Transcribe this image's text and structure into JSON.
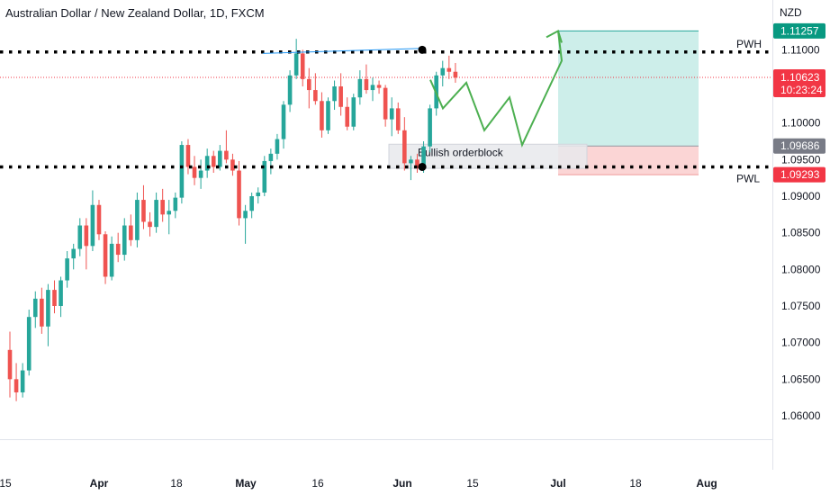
{
  "header": {
    "title": "Australian Dollar / New Zealand Dollar, 1D, FXCM",
    "currency": "NZD"
  },
  "chart_data": {
    "type": "candlestick",
    "ylim": [
      1.0565,
      1.1185
    ],
    "y_ticks": [
      "1.11000",
      "1.10000",
      "1.09500",
      "1.09000",
      "1.08500",
      "1.08000",
      "1.07500",
      "1.07000",
      "1.06500",
      "1.06000"
    ],
    "x_ticks": [
      {
        "label": "15",
        "bold": false
      },
      {
        "label": "Apr",
        "bold": true
      },
      {
        "label": "18",
        "bold": false
      },
      {
        "label": "May",
        "bold": true
      },
      {
        "label": "16",
        "bold": false
      },
      {
        "label": "Jun",
        "bold": true
      },
      {
        "label": "15",
        "bold": false
      },
      {
        "label": "Jul",
        "bold": true
      },
      {
        "label": "18",
        "bold": false
      },
      {
        "label": "Aug",
        "bold": true
      }
    ],
    "candles": [
      [
        1.069,
        1.0715,
        1.0625,
        1.065
      ],
      [
        1.065,
        1.0672,
        1.062,
        1.0632
      ],
      [
        1.0632,
        1.0672,
        1.0625,
        1.0662
      ],
      [
        1.0662,
        1.0745,
        1.0655,
        1.0735
      ],
      [
        1.0735,
        1.077,
        1.072,
        1.076
      ],
      [
        1.076,
        1.0775,
        1.0712,
        1.0722
      ],
      [
        1.0722,
        1.078,
        1.0695,
        1.0772
      ],
      [
        1.0772,
        1.0785,
        1.074,
        1.075
      ],
      [
        1.075,
        1.079,
        1.0735,
        1.0785
      ],
      [
        1.0785,
        1.0825,
        1.0775,
        1.0815
      ],
      [
        1.0815,
        1.0835,
        1.08,
        1.0828
      ],
      [
        1.0828,
        1.087,
        1.0818,
        1.086
      ],
      [
        1.086,
        1.087,
        1.08,
        1.0832
      ],
      [
        1.0832,
        1.0908,
        1.0825,
        1.0888
      ],
      [
        1.0888,
        1.0895,
        1.084,
        1.0848
      ],
      [
        1.0848,
        1.0852,
        1.078,
        1.079
      ],
      [
        1.079,
        1.0845,
        1.0785,
        1.0835
      ],
      [
        1.0835,
        1.085,
        1.081,
        1.082
      ],
      [
        1.082,
        1.087,
        1.0812,
        1.086
      ],
      [
        1.086,
        1.0875,
        1.0832,
        1.084
      ],
      [
        1.084,
        1.0905,
        1.083,
        1.0895
      ],
      [
        1.0895,
        1.0915,
        1.0855,
        1.0865
      ],
      [
        1.0865,
        1.0878,
        1.0845,
        1.0858
      ],
      [
        1.0858,
        1.0905,
        1.085,
        1.0895
      ],
      [
        1.0895,
        1.091,
        1.0865,
        1.0875
      ],
      [
        1.0875,
        1.0895,
        1.0848,
        1.088
      ],
      [
        1.088,
        1.0905,
        1.087,
        1.0898
      ],
      [
        1.0898,
        1.0975,
        1.089,
        1.097
      ],
      [
        1.097,
        1.0978,
        1.093,
        1.094
      ],
      [
        1.094,
        1.0955,
        1.0915,
        1.0925
      ],
      [
        1.0925,
        1.095,
        1.091,
        1.0935
      ],
      [
        1.0935,
        1.0965,
        1.0925,
        1.0955
      ],
      [
        1.0955,
        1.0962,
        1.0932,
        1.094
      ],
      [
        1.094,
        1.097,
        1.0935,
        1.0962
      ],
      [
        1.0962,
        1.099,
        1.0945,
        1.095
      ],
      [
        1.095,
        1.0958,
        1.0928,
        1.0935
      ],
      [
        1.0935,
        1.0948,
        1.086,
        1.087
      ],
      [
        1.087,
        1.0888,
        1.0835,
        1.088
      ],
      [
        1.088,
        1.0905,
        1.087,
        1.09
      ],
      [
        1.09,
        1.0912,
        1.089,
        1.0905
      ],
      [
        1.0905,
        1.0955,
        1.09,
        1.0948
      ],
      [
        1.0948,
        1.0965,
        1.093,
        1.0958
      ],
      [
        1.0958,
        1.0985,
        1.095,
        1.0978
      ],
      [
        1.0978,
        1.103,
        1.0965,
        1.1025
      ],
      [
        1.1025,
        1.1072,
        1.1015,
        1.1065
      ],
      [
        1.1065,
        1.1115,
        1.106,
        1.1095
      ],
      [
        1.1095,
        1.11,
        1.105,
        1.106
      ],
      [
        1.106,
        1.1075,
        1.102,
        1.1045
      ],
      [
        1.1045,
        1.1068,
        1.1025,
        1.103
      ],
      [
        1.103,
        1.1042,
        1.098,
        1.099
      ],
      [
        1.099,
        1.1035,
        1.0985,
        1.103
      ],
      [
        1.103,
        1.1058,
        1.1018,
        1.105
      ],
      [
        1.105,
        1.1068,
        1.101,
        1.1022
      ],
      [
        1.1022,
        1.1035,
        1.099,
        1.0995
      ],
      [
        1.0995,
        1.104,
        1.099,
        1.1035
      ],
      [
        1.1035,
        1.1072,
        1.1025,
        1.106
      ],
      [
        1.106,
        1.108,
        1.104,
        1.1045
      ],
      [
        1.1045,
        1.1062,
        1.103,
        1.1052
      ],
      [
        1.1052,
        1.1058,
        1.104,
        1.1048
      ],
      [
        1.1048,
        1.1052,
        1.0995,
        1.1005
      ],
      [
        1.1005,
        1.1035,
        1.0982,
        1.102
      ],
      [
        1.102,
        1.1028,
        1.0985,
        1.099
      ],
      [
        1.099,
        1.1008,
        1.0935,
        1.0945
      ],
      [
        1.0945,
        1.0955,
        1.0922,
        1.095
      ],
      [
        1.095,
        1.0958,
        1.0932,
        1.0938
      ],
      [
        1.0938,
        1.0975,
        1.0932,
        1.0968
      ],
      [
        1.0968,
        1.1025,
        1.096,
        1.102
      ],
      [
        1.102,
        1.107,
        1.101,
        1.1065
      ],
      [
        1.1065,
        1.1085,
        1.105,
        1.1075
      ],
      [
        1.1075,
        1.1092,
        1.106,
        1.107
      ],
      [
        1.107,
        1.1082,
        1.1055,
        1.1062
      ]
    ],
    "current_price": "1.10623",
    "countdown": "10:23:24",
    "range_high_tag": "1.11257",
    "ob_top_tag": "1.09686",
    "range_low_tag": "1.09293",
    "levels": {
      "pwh": {
        "label": "PWH",
        "value": 1.1097
      },
      "pwl": {
        "label": "PWL",
        "value": 1.094
      }
    },
    "orderblock": {
      "label": "Bullish orderblock",
      "top": 1.0971,
      "bottom": 1.0938
    },
    "projection": {
      "target": 1.11257,
      "entry": 1.09686,
      "stop": 1.09293,
      "path": [
        [
          0,
          1.1059
        ],
        [
          1,
          1.102
        ],
        [
          2,
          1.1055
        ],
        [
          3,
          1.099
        ],
        [
          4,
          1.1035
        ],
        [
          5,
          1.097
        ],
        [
          6,
          1.1085
        ],
        [
          7,
          1.11257
        ]
      ]
    },
    "colors": {
      "up": "#26a69a",
      "down": "#ef5350",
      "price_tag": "#f23645",
      "target_tag": "#089981",
      "entry_tag": "#787b86",
      "stop_tag": "#f23645",
      "profit_zone": "#cdeeea",
      "loss_zone": "#fbd5d5",
      "ob_zone": "#e7e9ec",
      "projection": "#4caf50",
      "level_line": "#000000",
      "trendline": "#2196f3"
    }
  }
}
